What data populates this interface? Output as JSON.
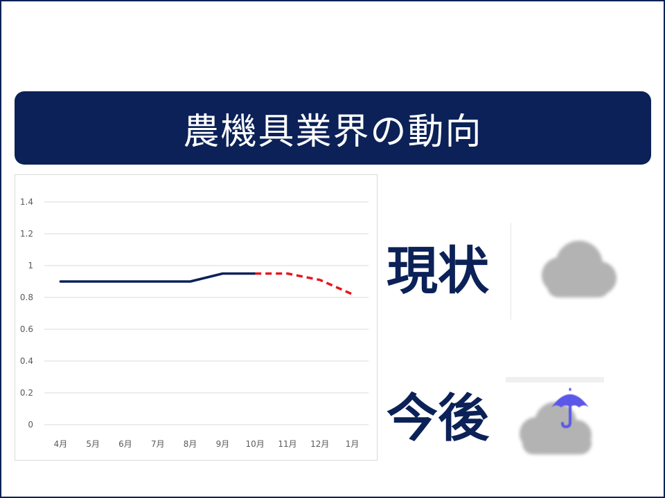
{
  "title": "農機具業界の動向",
  "status": {
    "current_label": "現状",
    "future_label": "今後",
    "current_icon": "cloud-icon",
    "future_icon": "cloud-umbrella-icon"
  },
  "colors": {
    "navy": "#0b2157",
    "forecast_red": "#e8141b",
    "cloud_gray": "#b3b3b3",
    "umbrella_blue": "#5b57e8"
  },
  "chart_data": {
    "type": "line",
    "categories": [
      "4月",
      "5月",
      "6月",
      "7月",
      "8月",
      "9月",
      "10月",
      "11月",
      "12月",
      "1月"
    ],
    "y_ticks": [
      "0",
      "0.2",
      "0.4",
      "0.6",
      "0.8",
      "1",
      "1.2",
      "1.4"
    ],
    "ylim": [
      0,
      1.5
    ],
    "grid": true,
    "series": [
      {
        "style": "solid",
        "color": "#0b2157",
        "values": [
          0.9,
          0.9,
          0.9,
          0.9,
          0.9,
          0.95,
          0.95,
          null,
          null,
          null
        ]
      },
      {
        "style": "dashed",
        "color": "#e8141b",
        "values": [
          null,
          null,
          null,
          null,
          null,
          null,
          0.95,
          0.95,
          0.91,
          0.82
        ]
      }
    ]
  }
}
